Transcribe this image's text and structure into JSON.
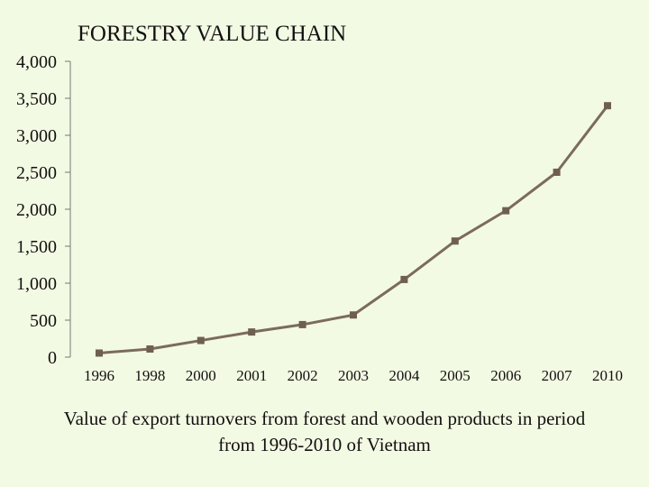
{
  "chart_data": {
    "type": "line",
    "title": "FORESTRY VALUE CHAIN",
    "categories": [
      "1996",
      "1998",
      "2000",
      "2001",
      "2002",
      "2003",
      "2004",
      "2005",
      "2006",
      "2007",
      "2010"
    ],
    "series": [
      {
        "name": "Export turnover",
        "values": [
          55,
          110,
          225,
          340,
          440,
          570,
          1050,
          1570,
          1980,
          2500,
          3400
        ]
      }
    ],
    "yticks": [
      "0",
      "500",
      "1,000",
      "1,500",
      "2,000",
      "2,500",
      "3,000",
      "3,500",
      "4,000"
    ],
    "ylim": [
      0,
      4000
    ],
    "xlabel": "",
    "ylabel": "",
    "grid": false,
    "line_color": "#7b6b5e",
    "marker_color": "#6f5f52"
  },
  "caption": {
    "line1": "Value of export turnovers from forest and wooden products in period",
    "line2": "from 1996-2010 of Vietnam"
  }
}
